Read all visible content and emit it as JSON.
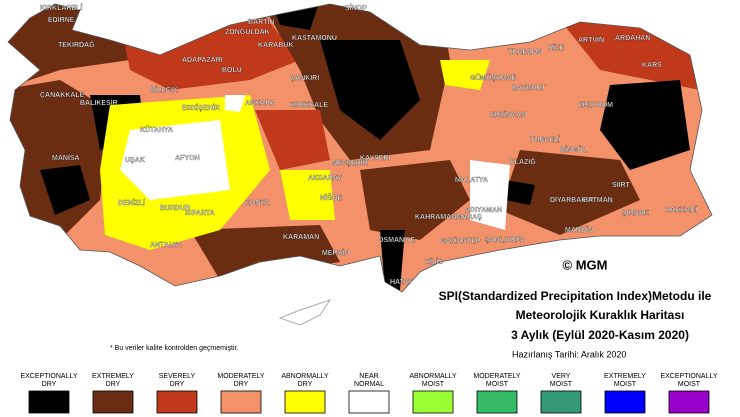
{
  "title_lines": [
    "SPI(Standardized Precipitation Index)Metodu ile",
    "Meteorolojik Kuraklık Haritası",
    "3 Aylık (Eylül 2020-Kasım 2020)"
  ],
  "prepared": "Hazırlanış Tarihi: Aralık 2020",
  "copyright": "© MGM",
  "note": "* Bu veriler kalite kontrolden geçmemiştir.",
  "legend": [
    {
      "lines": [
        "EXCEPTIONALLY",
        "DRY"
      ],
      "color": "#000000"
    },
    {
      "lines": [
        "EXTREMELY",
        "DRY"
      ],
      "color": "#6b2d12"
    },
    {
      "lines": [
        "SEVERELY",
        "DRY"
      ],
      "color": "#c0391b"
    },
    {
      "lines": [
        "MODERATELY",
        "DRY"
      ],
      "color": "#f3926a"
    },
    {
      "lines": [
        "ABNORMALLY",
        "DRY"
      ],
      "color": "#ffff00"
    },
    {
      "lines": [
        "NEAR",
        "NORMAL"
      ],
      "color": "#ffffff"
    },
    {
      "lines": [
        "ABNORMALLY",
        "MOIST"
      ],
      "color": "#99ff33"
    },
    {
      "lines": [
        "MODERATELY",
        "MOIST"
      ],
      "color": "#33bb66"
    },
    {
      "lines": [
        "VERY",
        "MOIST"
      ],
      "color": "#339977"
    },
    {
      "lines": [
        "EXTREMELY",
        "MOIST"
      ],
      "color": "#0000ff"
    },
    {
      "lines": [
        "EXCEPTIONALLY",
        "MOIST"
      ],
      "color": "#9900cc"
    }
  ],
  "cities": [
    "KIRKLARELİ",
    "EDİRNE",
    "TEKİRDAĞ",
    "SİNOP",
    "BARTIN",
    "ZONGULDAK",
    "KARABÜK",
    "KASTAMONU",
    "TRABZON",
    "RİZE",
    "ARTVİN",
    "ARDAHAN",
    "KARS",
    "GÜMÜŞHANE",
    "BAYBURT",
    "ERZURUM",
    "ADAPAZARI",
    "BOLU",
    "BİLECİK",
    "ÇANKIRI",
    "KIRIKKALE",
    "ANKARA",
    "ÇANAKKALE",
    "BALIKESİR",
    "ESKİŞEHİR",
    "KÜTAHYA",
    "ERZİNCAN",
    "TUNCELİ",
    "BİNGÖL",
    "ELAZIĞ",
    "MALATYA",
    "MANİSA",
    "UŞAK",
    "AFYON",
    "NEVŞEHİR",
    "KAYSERİ",
    "AKSARAY",
    "NİĞDE",
    "KONYA",
    "DENİZLİ",
    "BURDUR",
    "ISPARTA",
    "KARAMAN",
    "ANTALYA",
    "MERSİN",
    "OSMANİYE",
    "KAHRAMANMARAŞ",
    "ADIYAMAN",
    "GAZİANTEP",
    "ŞANLIURFA",
    "KİLİS",
    "HATAY",
    "DİYARBAKIR",
    "BATMAN",
    "SİİRT",
    "ŞIRNAK",
    "HAKKARİ",
    "MARDİN"
  ]
}
